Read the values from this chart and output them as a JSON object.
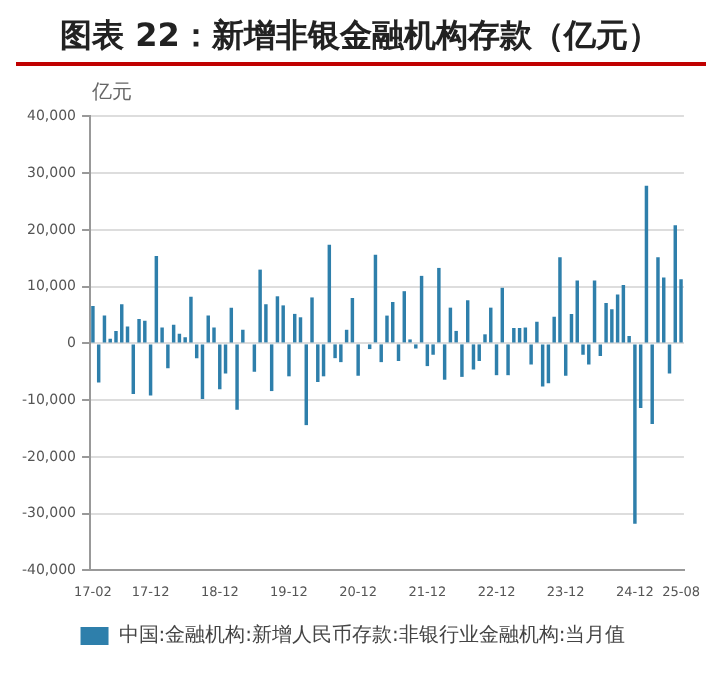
{
  "chart_data": {
    "type": "bar",
    "title": "图表 22：新增非银金融机构存款（亿元）",
    "ylabel": "亿元",
    "categories": [
      "17-02",
      null,
      null,
      null,
      null,
      null,
      null,
      null,
      null,
      null,
      "17-12",
      null,
      null,
      null,
      null,
      null,
      null,
      null,
      null,
      null,
      null,
      null,
      "18-12",
      null,
      null,
      null,
      null,
      null,
      null,
      null,
      null,
      null,
      null,
      null,
      "19-12",
      null,
      null,
      null,
      null,
      null,
      null,
      null,
      null,
      null,
      null,
      null,
      "20-12",
      null,
      null,
      null,
      null,
      null,
      null,
      null,
      null,
      null,
      null,
      null,
      "21-12",
      null,
      null,
      null,
      null,
      null,
      null,
      null,
      null,
      null,
      null,
      null,
      "22-12",
      null,
      null,
      null,
      null,
      null,
      null,
      null,
      null,
      null,
      null,
      null,
      "23-12",
      null,
      null,
      null,
      null,
      null,
      null,
      null,
      null,
      null,
      null,
      null,
      "24-12",
      null,
      null,
      null,
      null,
      null,
      null,
      null,
      "25-08"
    ],
    "series": [
      {
        "name": "中国:金融机构:新增人民币存款:非银行业金融机构:当月值",
        "color": "#2e7fab",
        "values": [
          6600,
          -6900,
          4900,
          800,
          2200,
          6900,
          3000,
          -8900,
          4300,
          4000,
          -9200,
          15400,
          2800,
          -4400,
          3300,
          1700,
          1100,
          8200,
          -2600,
          -9800,
          4900,
          2800,
          -8100,
          -5300,
          6300,
          -11700,
          2400,
          null,
          -5000,
          13000,
          6900,
          -8400,
          8300,
          6700,
          -5800,
          5200,
          4600,
          -14400,
          8100,
          -6800,
          -5800,
          17400,
          -2600,
          -3300,
          2400,
          8000,
          -5700,
          null,
          -1000,
          15600,
          -3300,
          4900,
          7300,
          -3100,
          9200,
          700,
          -900,
          11900,
          -4000,
          -2000,
          13300,
          -6400,
          6300,
          2200,
          -5900,
          7600,
          -4600,
          -3100,
          1600,
          6300,
          -5600,
          9800,
          -5600,
          2700,
          2700,
          2800,
          -3700,
          3800,
          -7600,
          -7000,
          4700,
          15200,
          -5700,
          5200,
          11100,
          -2000,
          -3700,
          11100,
          -2200,
          7100,
          6000,
          8600,
          10300,
          1300,
          -31800,
          -11400,
          27800,
          -14200,
          15200,
          11600,
          -5300,
          20800,
          11300
        ]
      }
    ],
    "ylim": [
      -40000,
      40000
    ],
    "yticks": [
      {
        "value": -40000,
        "label": "-40,000"
      },
      {
        "value": -30000,
        "label": "-30,000"
      },
      {
        "value": -20000,
        "label": "-20,000"
      },
      {
        "value": -10000,
        "label": "-10,000"
      },
      0,
      {
        "value": 10000,
        "label": "10,000"
      },
      {
        "value": 20000,
        "label": "20,000"
      },
      {
        "value": 30000,
        "label": "30,000"
      },
      {
        "value": 40000,
        "label": "40,000"
      }
    ],
    "grid": "y",
    "legend": "bottom"
  }
}
